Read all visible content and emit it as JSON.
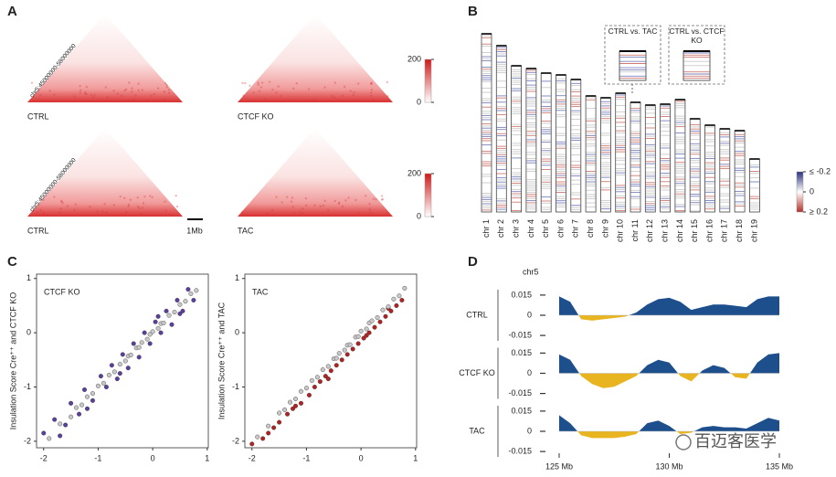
{
  "panel_labels": [
    "A",
    "B",
    "C",
    "D"
  ],
  "panel_a": {
    "rows": [
      {
        "region": "chr5:45000000-58000000",
        "samples": [
          "CTRL",
          "CTCF KO"
        ],
        "colorbar_lim": [
          0,
          200
        ],
        "colorbar_ticks": [
          0,
          200
        ]
      },
      {
        "region": "chr5:45000000-58000000",
        "samples": [
          "CTRL",
          "TAC"
        ],
        "colorbar_lim": [
          0,
          200
        ],
        "colorbar_ticks": [
          0,
          200
        ],
        "scale_bar": "1Mb"
      }
    ]
  },
  "panel_b": {
    "chromosomes": [
      {
        "name": "chr 1",
        "length": 195
      },
      {
        "name": "chr 2",
        "length": 182
      },
      {
        "name": "chr 3",
        "length": 160
      },
      {
        "name": "chr 4",
        "length": 157
      },
      {
        "name": "chr 5",
        "length": 152
      },
      {
        "name": "chr 6",
        "length": 150
      },
      {
        "name": "chr 7",
        "length": 145
      },
      {
        "name": "chr 8",
        "length": 127
      },
      {
        "name": "chr 9",
        "length": 125
      },
      {
        "name": "chr 10",
        "length": 130
      },
      {
        "name": "chr 11",
        "length": 120
      },
      {
        "name": "chr 12",
        "length": 117
      },
      {
        "name": "chr 13",
        "length": 118
      },
      {
        "name": "chr 14",
        "length": 123
      },
      {
        "name": "chr 15",
        "length": 102
      },
      {
        "name": "chr 16",
        "length": 95
      },
      {
        "name": "chr 17",
        "length": 91
      },
      {
        "name": "chr 18",
        "length": 89
      },
      {
        "name": "chr 19",
        "length": 58
      }
    ],
    "insets": [
      "CTRL vs. TAC",
      "CTRL vs. CTCF KO"
    ],
    "colorbar_lim": [
      -0.2,
      0.2
    ],
    "colorbar_ticks": [
      {
        "value": -0.2,
        "label": "≤ -0.2"
      },
      0,
      {
        "value": 0.2,
        "label": "≥ 0.2"
      }
    ]
  },
  "panel_c": {
    "charts": [
      {
        "type": "scatter",
        "label": "CTCF KO",
        "ylabel": "Insulation Score Cre⁺⁺ and CTCF KO",
        "xlim": [
          -2.13,
          1.02
        ],
        "ylim": [
          -2.12,
          1.08
        ],
        "xticks": [
          -2,
          -1,
          0,
          1
        ],
        "yticks": [
          1,
          0,
          -1,
          -2
        ],
        "series": [
          {
            "color": "#5b3f9c",
            "x": [
              -2.0,
              -1.8,
              -1.6,
              -1.5,
              -1.35,
              -1.25,
              -1.1,
              -0.95,
              -0.85,
              -0.75,
              -0.65,
              -0.55,
              -0.45,
              -0.35,
              -0.25,
              -0.15,
              -0.05,
              0.05,
              0.15,
              0.25,
              0.35,
              0.45,
              0.55,
              0.65,
              0.75,
              -1.7,
              -1.2,
              -0.6,
              0.1,
              0.5
            ],
            "y": [
              -1.85,
              -1.6,
              -1.7,
              -1.3,
              -1.5,
              -1.05,
              -1.25,
              -0.8,
              -1.0,
              -0.6,
              -0.85,
              -0.4,
              -0.65,
              -0.2,
              -0.45,
              0.0,
              -0.2,
              0.2,
              0.0,
              0.4,
              0.15,
              0.6,
              0.4,
              0.8,
              0.6,
              -1.9,
              -1.4,
              -0.75,
              0.3,
              0.35
            ]
          },
          {
            "color": "#c8c8c8",
            "x": [
              -1.9,
              -1.7,
              -1.5,
              -1.4,
              -1.3,
              -1.2,
              -1.1,
              -1.0,
              -0.9,
              -0.8,
              -0.7,
              -0.6,
              -0.5,
              -0.45,
              -0.4,
              -0.3,
              -0.25,
              -0.2,
              -0.1,
              -0.05,
              0,
              0.1,
              0.15,
              0.2,
              0.3,
              0.4,
              0.5,
              0.6,
              0.7,
              0.8
            ],
            "y": [
              -1.95,
              -1.68,
              -1.55,
              -1.38,
              -1.33,
              -1.18,
              -1.12,
              -0.98,
              -0.93,
              -0.78,
              -0.72,
              -0.58,
              -0.52,
              -0.43,
              -0.41,
              -0.28,
              -0.27,
              -0.18,
              -0.12,
              -0.03,
              0.02,
              0.08,
              0.17,
              0.18,
              0.32,
              0.38,
              0.52,
              0.58,
              0.72,
              0.78
            ]
          }
        ]
      },
      {
        "type": "scatter",
        "label": "TAC",
        "ylabel": "Insulation Score Cre⁺⁺ and TAC",
        "xlim": [
          -2.13,
          1.02
        ],
        "ylim": [
          -2.12,
          1.08
        ],
        "xticks": [
          -2,
          -1,
          0,
          1
        ],
        "yticks": [
          1,
          0,
          -1,
          -2
        ],
        "series": [
          {
            "color": "#b22222",
            "x": [
              -2.0,
              -1.8,
              -1.6,
              -1.5,
              -1.35,
              -1.25,
              -1.1,
              -0.95,
              -0.85,
              -0.75,
              -0.65,
              -0.55,
              -0.45,
              -0.35,
              -0.25,
              -0.15,
              -0.05,
              0.05,
              0.15,
              0.25,
              0.35,
              0.45,
              0.55,
              0.65,
              0.75,
              -1.7,
              -1.2,
              -0.6,
              0.1,
              0.5
            ],
            "y": [
              -2.05,
              -1.95,
              -1.75,
              -1.65,
              -1.5,
              -1.4,
              -1.3,
              -1.15,
              -1.0,
              -0.9,
              -0.8,
              -0.7,
              -0.6,
              -0.5,
              -0.4,
              -0.3,
              -0.2,
              -0.1,
              0.0,
              0.1,
              0.2,
              0.3,
              0.4,
              0.5,
              0.6,
              -1.85,
              -1.35,
              -0.85,
              -0.05,
              0.45
            ]
          },
          {
            "color": "#c8c8c8",
            "x": [
              -1.9,
              -1.7,
              -1.5,
              -1.4,
              -1.3,
              -1.2,
              -1.1,
              -1.0,
              -0.9,
              -0.8,
              -0.7,
              -0.6,
              -0.5,
              -0.45,
              -0.4,
              -0.3,
              -0.25,
              -0.2,
              -0.1,
              -0.05,
              0,
              0.1,
              0.15,
              0.2,
              0.3,
              0.4,
              0.5,
              0.6,
              0.7,
              0.8
            ],
            "y": [
              -1.92,
              -1.72,
              -1.48,
              -1.42,
              -1.28,
              -1.22,
              -1.08,
              -1.02,
              -0.88,
              -0.82,
              -0.68,
              -0.62,
              -0.48,
              -0.47,
              -0.38,
              -0.32,
              -0.23,
              -0.22,
              -0.08,
              -0.07,
              0.03,
              0.07,
              0.18,
              0.22,
              0.28,
              0.42,
              0.48,
              0.62,
              0.68,
              0.82
            ]
          }
        ]
      }
    ]
  },
  "panel_d": {
    "chromosome": "chr5",
    "xlim": [
      125,
      135
    ],
    "xticks": [
      {
        "value": 125,
        "label": "125 Mb"
      },
      {
        "value": 130,
        "label": "130 Mb"
      },
      {
        "value": 135,
        "label": "135 Mb"
      }
    ],
    "ylim": [
      -0.019,
      0.019
    ],
    "yticks": [
      0.015,
      0,
      -0.015
    ],
    "positive_color": "#1d4f8c",
    "negative_color": "#e8b41f",
    "x": [
      125,
      125.5,
      126,
      126.5,
      127,
      127.5,
      128,
      128.5,
      129,
      129.5,
      130,
      130.5,
      131,
      131.5,
      132,
      132.5,
      133,
      133.5,
      134,
      134.5,
      135
    ],
    "tracks": [
      {
        "name": "CTRL",
        "values": [
          0.014,
          0.01,
          -0.003,
          -0.004,
          -0.003,
          -0.002,
          -0.001,
          0.002,
          0.008,
          0.012,
          0.013,
          0.01,
          0.004,
          0.006,
          0.008,
          0.008,
          0.007,
          0.006,
          0.012,
          0.014,
          0.014
        ]
      },
      {
        "name": "CTCF KO",
        "values": [
          0.014,
          0.01,
          -0.002,
          -0.008,
          -0.011,
          -0.01,
          -0.006,
          -0.002,
          0.006,
          0.01,
          0.008,
          -0.002,
          -0.006,
          0.002,
          0.006,
          0.004,
          -0.003,
          -0.004,
          0.008,
          0.014,
          0.015
        ]
      },
      {
        "name": "TAC",
        "values": [
          0.012,
          0.006,
          -0.003,
          -0.005,
          -0.005,
          -0.005,
          -0.004,
          -0.002,
          0.006,
          0.008,
          0.004,
          -0.002,
          -0.001,
          0.003,
          0.004,
          0.003,
          0.003,
          0.002,
          0.006,
          0.01,
          0.008
        ]
      }
    ]
  },
  "watermark": "百迈客医学"
}
